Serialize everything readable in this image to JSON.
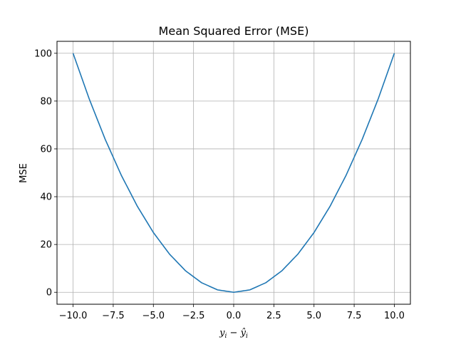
{
  "chart_data": {
    "type": "line",
    "title": "Mean Squared Error (MSE)",
    "xlabel": "y_i − ŷ_i",
    "ylabel": "MSE",
    "xlim": [
      -11,
      11
    ],
    "ylim": [
      -5,
      105
    ],
    "grid": true,
    "x_ticks": [
      -10.0,
      -7.5,
      -5.0,
      -2.5,
      0.0,
      2.5,
      5.0,
      7.5,
      10.0
    ],
    "x_tick_labels": [
      "−10.0",
      "−7.5",
      "−5.0",
      "−2.5",
      "0.0",
      "2.5",
      "5.0",
      "7.5",
      "10.0"
    ],
    "y_ticks": [
      0,
      20,
      40,
      60,
      80,
      100
    ],
    "y_tick_labels": [
      "0",
      "20",
      "40",
      "60",
      "80",
      "100"
    ],
    "series": [
      {
        "color": "#1f77b4",
        "x": [
          -10,
          -9,
          -8,
          -7,
          -6,
          -5,
          -4,
          -3,
          -2,
          -1,
          0,
          1,
          2,
          3,
          4,
          5,
          6,
          7,
          8,
          9,
          10
        ],
        "y": [
          100,
          81,
          64,
          49,
          36,
          25,
          16,
          9,
          4,
          1,
          0,
          1,
          4,
          9,
          16,
          25,
          36,
          49,
          64,
          81,
          100
        ]
      }
    ]
  }
}
